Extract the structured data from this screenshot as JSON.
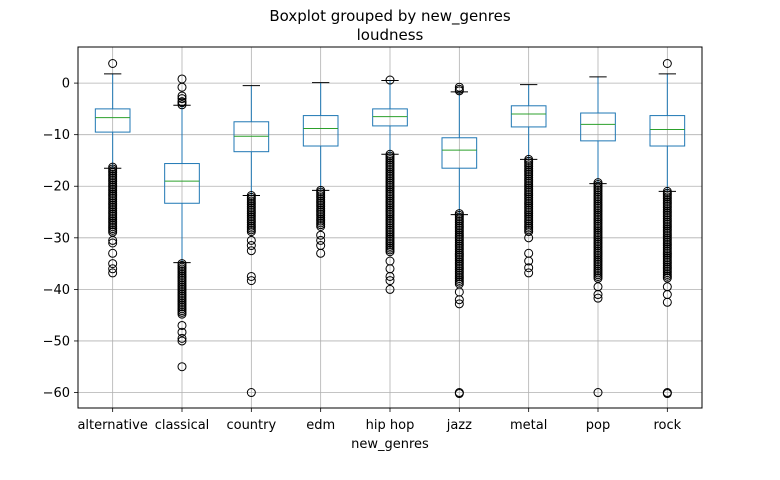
{
  "chart_data": {
    "type": "boxplot",
    "title": "Boxplot grouped by new_genres",
    "subtitle": "loudness",
    "xlabel": "new_genres",
    "ylabel": "",
    "ylim": [
      -63,
      7
    ],
    "yticks": [
      0,
      -10,
      -20,
      -30,
      -40,
      -50,
      -60
    ],
    "grid": true,
    "colors": {
      "box": "#1f77b4",
      "median": "#2ca02c",
      "whisker": "#1f77b4",
      "cap": "#000000",
      "flier": "#000000",
      "grid": "#b0b0b0"
    },
    "categories": [
      "alternative",
      "classical",
      "country",
      "edm",
      "hip hop",
      "jazz",
      "metal",
      "pop",
      "rock"
    ],
    "boxes": [
      {
        "name": "alternative",
        "whislo": -16.5,
        "q1": -9.5,
        "median": -6.7,
        "q3": -5.0,
        "whishi": 1.8,
        "fliers_high": [
          3.8
        ],
        "fliers_low_range": [
          -16.3,
          -29
        ],
        "fliers_low_extra": [
          -30.5,
          -31,
          -33,
          -35,
          -36,
          -36.8
        ]
      },
      {
        "name": "classical",
        "whislo": -34.8,
        "q1": -23.3,
        "median": -19.0,
        "q3": -15.6,
        "whishi": -4.3,
        "fliers_high": [
          0.8,
          -0.8,
          -2.5,
          -3.0,
          -3.6,
          -3.8,
          -4.2
        ],
        "fliers_low_range": [
          -35,
          -45
        ],
        "fliers_low_extra": [
          -47,
          -48.3,
          -49.5,
          -50,
          -55
        ]
      },
      {
        "name": "country",
        "whislo": -21.8,
        "q1": -13.3,
        "median": -10.3,
        "q3": -7.5,
        "whishi": -0.5,
        "fliers_high": [],
        "fliers_low_range": [
          -21.8,
          -29
        ],
        "fliers_low_extra": [
          -30.5,
          -31.5,
          -32.5,
          -37.5,
          -38.3,
          -60
        ]
      },
      {
        "name": "edm",
        "whislo": -20.8,
        "q1": -12.2,
        "median": -8.8,
        "q3": -6.3,
        "whishi": 0.1,
        "fliers_high": [],
        "fliers_low_range": [
          -20.8,
          -28
        ],
        "fliers_low_extra": [
          -29.5,
          -30.5,
          -31.5,
          -33
        ]
      },
      {
        "name": "hip hop",
        "whislo": -13.8,
        "q1": -8.3,
        "median": -6.5,
        "q3": -5.0,
        "whishi": 0.5,
        "fliers_high": [
          0.6
        ],
        "fliers_low_range": [
          -13.8,
          -33
        ],
        "fliers_low_extra": [
          -34.5,
          -36,
          -37.5,
          -38.3,
          -40
        ]
      },
      {
        "name": "jazz",
        "whislo": -25.5,
        "q1": -16.5,
        "median": -13.0,
        "q3": -10.6,
        "whishi": -1.7,
        "fliers_high": [
          -0.8,
          -1.2,
          -1.5
        ],
        "fliers_low_range": [
          -25.3,
          -39
        ],
        "fliers_low_extra": [
          -40.5,
          -42,
          -42.8,
          -60,
          -60.2
        ]
      },
      {
        "name": "metal",
        "whislo": -14.8,
        "q1": -8.5,
        "median": -6.0,
        "q3": -4.4,
        "whishi": -0.3,
        "fliers_high": [],
        "fliers_low_range": [
          -14.8,
          -29
        ],
        "fliers_low_extra": [
          -30,
          -33,
          -34.5,
          -35.8,
          -36.8
        ]
      },
      {
        "name": "pop",
        "whislo": -19.5,
        "q1": -11.2,
        "median": -8.0,
        "q3": -5.8,
        "whishi": 1.2,
        "fliers_high": [],
        "fliers_low_range": [
          -19.3,
          -38
        ],
        "fliers_low_extra": [
          -39.5,
          -41,
          -41.7,
          -60
        ]
      },
      {
        "name": "rock",
        "whislo": -21.0,
        "q1": -12.2,
        "median": -9.0,
        "q3": -6.3,
        "whishi": 1.8,
        "fliers_high": [
          3.8
        ],
        "fliers_low_range": [
          -21,
          -38
        ],
        "fliers_low_extra": [
          -39.5,
          -41,
          -42.5,
          -60,
          -60.2
        ]
      }
    ]
  }
}
